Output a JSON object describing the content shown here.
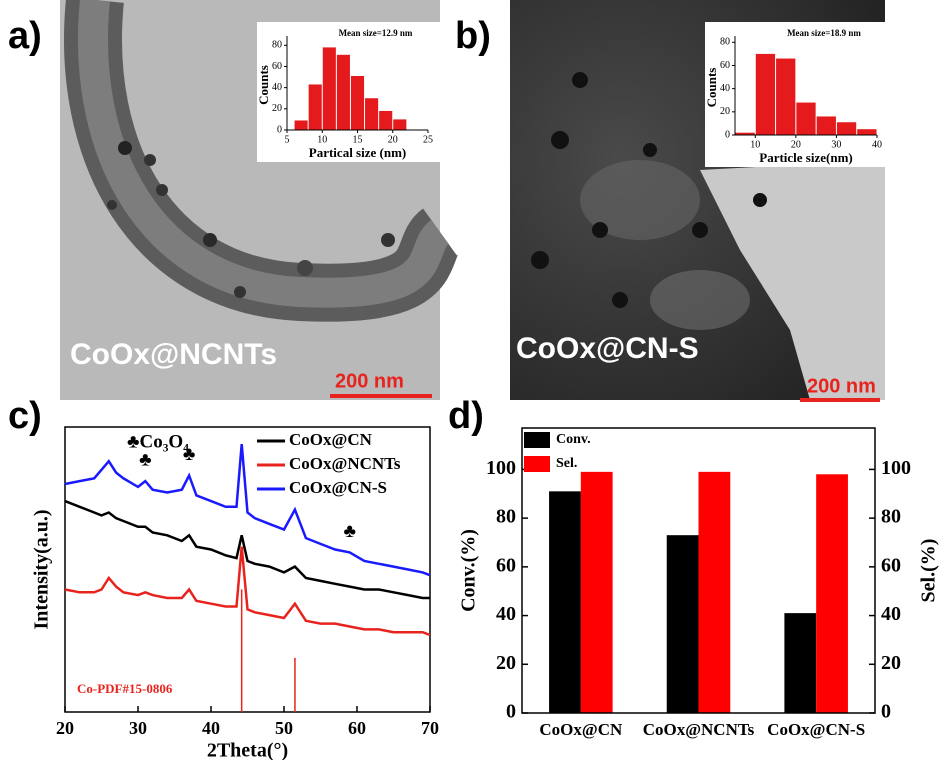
{
  "chart_data": [
    {
      "type": "histogram",
      "panel": "a)",
      "image_label": "CoOx@NCNTs",
      "scale_bar": "200 nm",
      "annotation": "Mean size=12.9 nm",
      "xlabel": "Partical size (nm)",
      "ylabel": "Counts",
      "bins": [
        6,
        8,
        10,
        12,
        14,
        16,
        18,
        20,
        22
      ],
      "values": [
        9,
        43,
        78,
        71,
        51,
        30,
        18,
        10
      ],
      "color": "#e41a1c",
      "xlim": [
        5,
        25
      ],
      "xticks": [
        5,
        10,
        15,
        20,
        25
      ],
      "ylim": [
        0,
        85
      ],
      "yticks": [
        0,
        20,
        40,
        60,
        80
      ]
    },
    {
      "type": "histogram",
      "panel": "b)",
      "image_label": "CoOx@CN-S",
      "scale_bar": "200 nm",
      "annotation": "Mean size=18.9 nm",
      "xlabel": "Particle size(nm)",
      "ylabel": "Counts",
      "bins": [
        5,
        10,
        15,
        20,
        25,
        30,
        35,
        40
      ],
      "values": [
        2,
        70,
        66,
        28,
        16,
        11,
        5
      ],
      "color": "#e41a1c",
      "xlim": [
        5,
        40
      ],
      "xticks": [
        10,
        20,
        30,
        40
      ],
      "ylim": [
        0,
        82
      ],
      "yticks": [
        0,
        20,
        40,
        60,
        80
      ]
    },
    {
      "type": "line",
      "panel": "c)",
      "xlabel": "2Theta(°)",
      "ylabel": "Intensity(a.u.)",
      "annotation": "♣Co₃O₄",
      "marker_symbol": "♣",
      "marker_x": [
        31,
        37,
        59
      ],
      "x": [
        20,
        22,
        24,
        25,
        26,
        27,
        28,
        30,
        31,
        32,
        34,
        36,
        37,
        38,
        40,
        42,
        43.5,
        44.2,
        45,
        46,
        48,
        50,
        51.5,
        53,
        55,
        57,
        59,
        61,
        63,
        65,
        67,
        69,
        70
      ],
      "series": [
        {
          "name": "CoOx@CN",
          "color": "#000000",
          "values": [
            74,
            72,
            70,
            69,
            70,
            68,
            67,
            65,
            65,
            63,
            62,
            60,
            62,
            58,
            57,
            55,
            54,
            62,
            53,
            52,
            51,
            49,
            51,
            47,
            46,
            45,
            44,
            43,
            43,
            42,
            41,
            40,
            40
          ]
        },
        {
          "name": "CoOx@NCNTs",
          "color": "#e8231e",
          "values": [
            43,
            42,
            42,
            43,
            47,
            44,
            42,
            41,
            42,
            41,
            40,
            40,
            43,
            39,
            38,
            37,
            37,
            58,
            36,
            35,
            34,
            33,
            38,
            32,
            31,
            31,
            30,
            29,
            29,
            28,
            28,
            28,
            27
          ]
        },
        {
          "name": "CoOx@CN-S",
          "color": "#1a1aff",
          "values": [
            80,
            81,
            82,
            85,
            88,
            84,
            82,
            79,
            81,
            78,
            77,
            78,
            83,
            76,
            74,
            72,
            72,
            94,
            70,
            68,
            66,
            64,
            71,
            61,
            59,
            57,
            56,
            53,
            52,
            51,
            50,
            49,
            48
          ]
        }
      ],
      "reference": {
        "name": "Co-PDF#15-0806",
        "color": "#e8231e",
        "x": [
          44.2,
          51.5
        ],
        "values": [
          43,
          19
        ]
      },
      "xlim": [
        20,
        70
      ],
      "xticks": [
        20,
        30,
        40,
        50,
        60,
        70
      ],
      "ylim": [
        0,
        100
      ]
    },
    {
      "type": "bar",
      "panel": "d)",
      "ylabel": "Conv.(%)",
      "y2label": "Sel.(%)",
      "categories": [
        "CoOx@CN",
        "CoOx@NCNTs",
        "CoOx@CN-S"
      ],
      "series": [
        {
          "name": "Conv.",
          "color": "#000000",
          "values": [
            91,
            73,
            41
          ]
        },
        {
          "name": "Sel.",
          "color": "#ff0000",
          "values": [
            99,
            99,
            98
          ],
          "axis": "y2"
        }
      ],
      "ylim": [
        0,
        117
      ],
      "yticks": [
        0,
        20,
        40,
        60,
        80,
        100
      ],
      "y2lim": [
        0,
        117
      ],
      "y2ticks": [
        0,
        20,
        40,
        60,
        80,
        100
      ],
      "legend": "top-left"
    }
  ]
}
